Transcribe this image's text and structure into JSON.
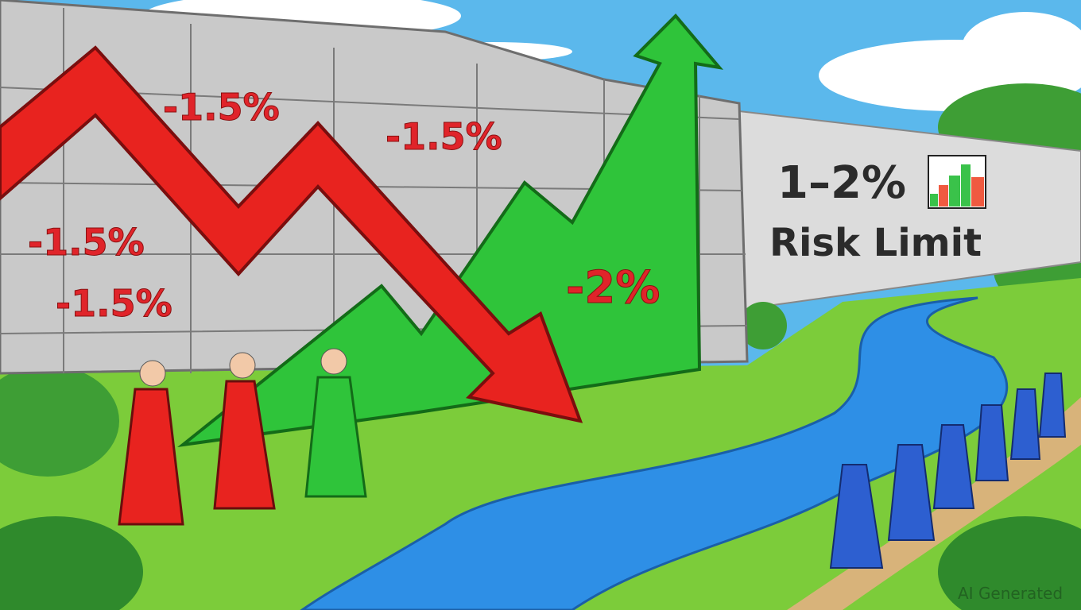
{
  "scene": {
    "left_wall_labels": [
      "-1.5%",
      "-1.5%",
      "-1.5%",
      "-1.5%"
    ],
    "green_arrow_label": "-2%",
    "right_wall_title": "1–2%",
    "right_wall_subtitle": "Risk Limit",
    "watermark": "AI Generated",
    "colors": {
      "red_arrow": "#e8231f",
      "green_arrow": "#2fc43a",
      "river": "#2e8fe6",
      "wall": "#c9c9c9",
      "grass": "#7ccc3a",
      "sky": "#5bb8ec"
    }
  }
}
